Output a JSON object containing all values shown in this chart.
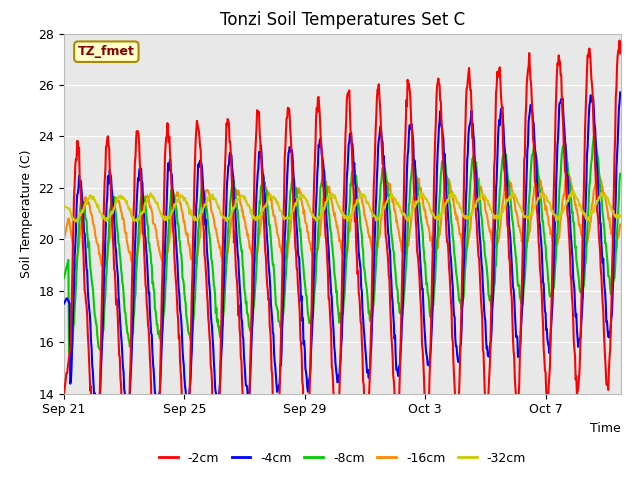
{
  "title": "Tonzi Soil Temperatures Set C",
  "xlabel": "Time",
  "ylabel": "Soil Temperature (C)",
  "ylim": [
    14,
    28
  ],
  "xlim_days": [
    0,
    18.5
  ],
  "x_ticks_days": [
    0,
    4,
    8,
    12,
    16
  ],
  "x_tick_labels": [
    "Sep 21",
    "Sep 25",
    "Sep 29",
    "Oct 3",
    "Oct 7"
  ],
  "y_ticks": [
    14,
    16,
    18,
    20,
    22,
    24,
    26,
    28
  ],
  "annotation_text": "TZ_fmet",
  "annotation_bg": "#ffffcc",
  "annotation_border": "#aa8800",
  "plot_bg": "#e8e8e8",
  "series_colors": [
    "#ff0000",
    "#0000ff",
    "#00cc00",
    "#ff8800",
    "#cccc00"
  ],
  "series_labels": [
    "-2cm",
    "-4cm",
    "-8cm",
    "-16cm",
    "-32cm"
  ],
  "line_width": 1.5,
  "title_fontsize": 12,
  "label_fontsize": 9,
  "tick_fontsize": 9,
  "legend_fontsize": 9
}
